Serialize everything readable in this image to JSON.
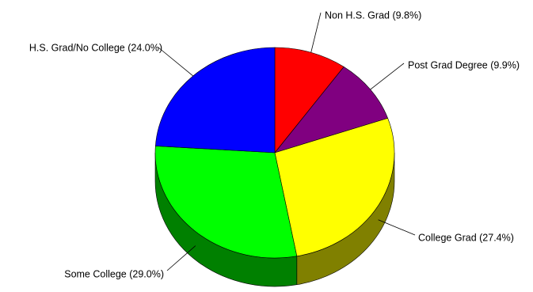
{
  "chart_data": {
    "type": "pie",
    "style": "3d",
    "title": "",
    "legend": "none",
    "slices": [
      {
        "label": "Non H.S. Grad (9.8%)",
        "value": 9.8,
        "color": "#ff0000",
        "side_color": "#800000"
      },
      {
        "label": "Post Grad Degree (9.9%)",
        "value": 9.9,
        "color": "#800080",
        "side_color": "#400040"
      },
      {
        "label": "College Grad (27.4%)",
        "value": 27.4,
        "color": "#ffff00",
        "side_color": "#808000"
      },
      {
        "label": "Some College (29.0%)",
        "value": 29.0,
        "color": "#00ff00",
        "side_color": "#008000"
      },
      {
        "label": "H.S. Grad/No College (24.0%)",
        "value": 24.0,
        "color": "#0000ff",
        "side_color": "#000080"
      }
    ]
  }
}
